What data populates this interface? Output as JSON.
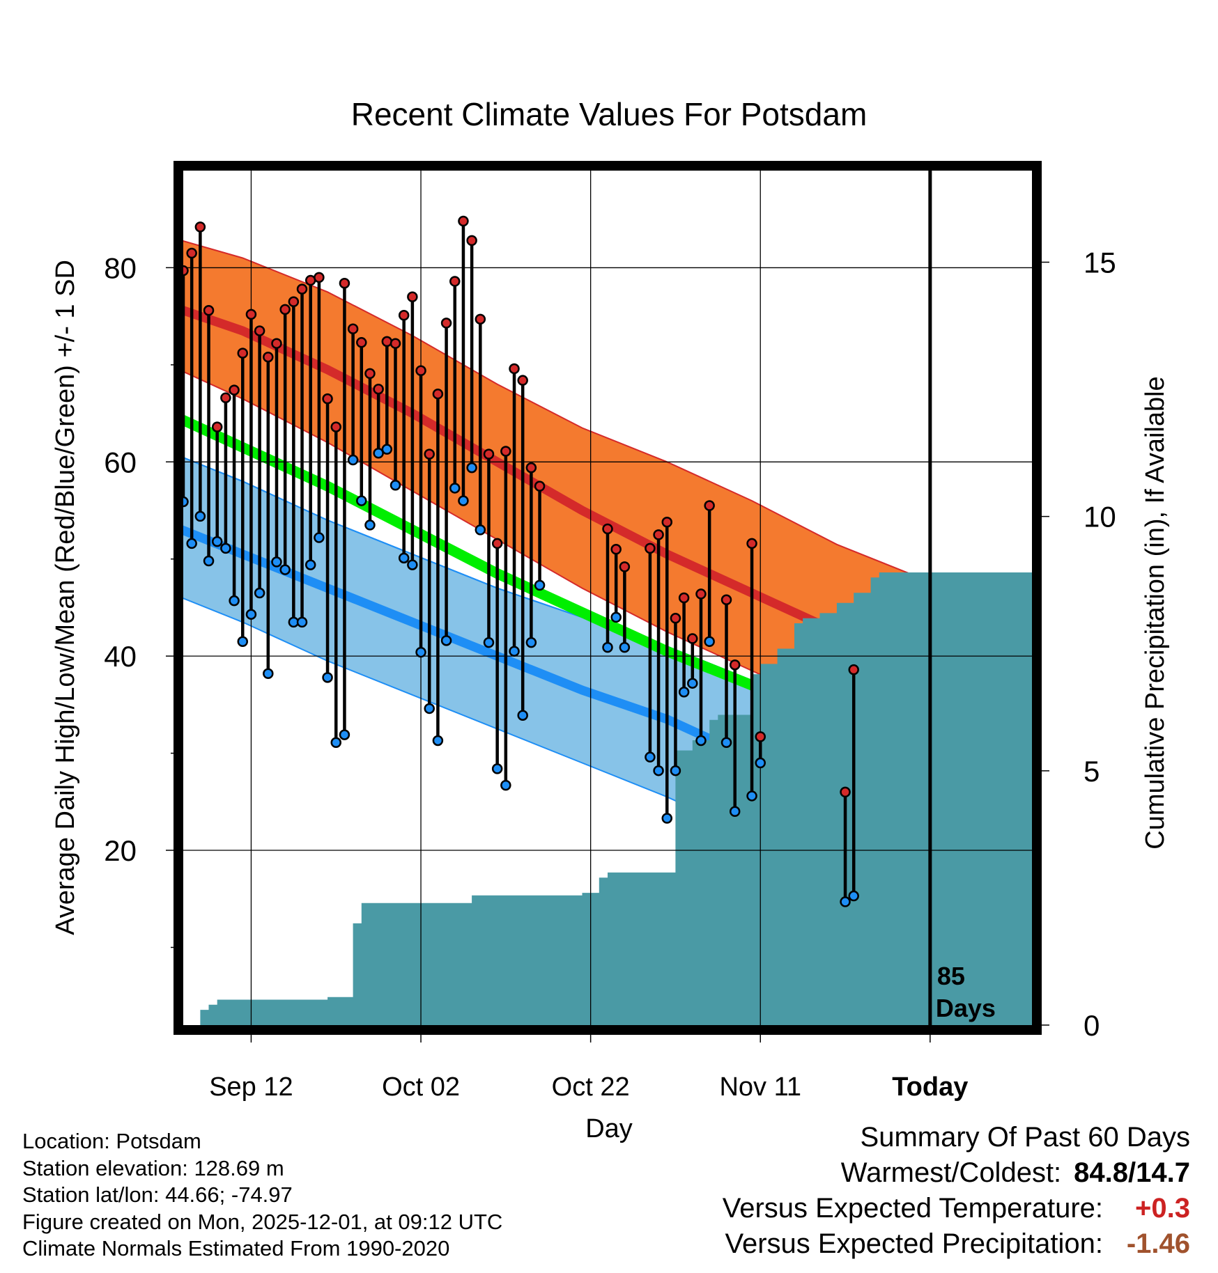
{
  "chart_data": {
    "type": "line",
    "title": "Recent Climate Values For Potsdam",
    "xlabel": "Day",
    "ylabel": "Average Daily High/Low/Mean (Red/Blue/Green) +/- 1 SD",
    "y2label": "Cumulative Precipitation (in), If Available",
    "x_range_days": [
      -87,
      13
    ],
    "y_range": [
      2,
      90
    ],
    "y2_range": [
      0,
      16.8
    ],
    "x_ticks": [
      {
        "day": -79,
        "label": "Sep 12"
      },
      {
        "day": -59,
        "label": "Oct 02"
      },
      {
        "day": -39,
        "label": "Oct 22"
      },
      {
        "day": -19,
        "label": "Nov 11"
      },
      {
        "day": 1,
        "label": "Today"
      }
    ],
    "y_ticks": [
      20,
      40,
      60,
      80
    ],
    "y2_ticks": [
      0,
      5,
      10,
      15
    ],
    "grid": true,
    "today_marker_day": 1,
    "today_label": [
      "85",
      "Days"
    ],
    "normals": {
      "days": [
        -90,
        -80,
        -70,
        -60,
        -50,
        -40,
        -30,
        -20,
        -10,
        0,
        10
      ],
      "high_mean": [
        76.5,
        73.5,
        69.5,
        65.0,
        60.0,
        55.0,
        50.5,
        46.5,
        42.5,
        38.5,
        35.0
      ],
      "high_upper": [
        83.5,
        81.0,
        77.5,
        73.0,
        68.0,
        63.5,
        60.0,
        56.0,
        51.5,
        48.0,
        44.5
      ],
      "high_lower": [
        70.5,
        66.5,
        62.0,
        57.0,
        52.0,
        47.0,
        42.5,
        38.5,
        34.5,
        29.5,
        25.0
      ],
      "mean": [
        65.5,
        61.5,
        57.5,
        53.0,
        48.5,
        44.5,
        40.5,
        37.0,
        33.5,
        30.0,
        26.5
      ],
      "low_mean": [
        54.0,
        50.5,
        47.0,
        43.5,
        40.0,
        36.5,
        33.5,
        29.5,
        25.5,
        22.0,
        19.0
      ],
      "low_upper": [
        61.5,
        58.0,
        54.0,
        50.5,
        47.0,
        44.0,
        41.0,
        37.5,
        34.5,
        31.5,
        29.0
      ],
      "low_lower": [
        47.0,
        43.5,
        39.5,
        36.0,
        32.5,
        29.0,
        25.5,
        21.5,
        17.5,
        14.0,
        10.5
      ]
    },
    "observations": [
      {
        "day": -87,
        "high": 79.7,
        "low": 55.9
      },
      {
        "day": -86,
        "high": 81.5,
        "low": 51.6
      },
      {
        "day": -85,
        "high": 84.2,
        "low": 54.4
      },
      {
        "day": -84,
        "high": 75.6,
        "low": 49.8
      },
      {
        "day": -83,
        "high": 63.6,
        "low": 51.8
      },
      {
        "day": -82,
        "high": 66.6,
        "low": 51.1
      },
      {
        "day": -81,
        "high": 67.4,
        "low": 45.7
      },
      {
        "day": -80,
        "high": 71.2,
        "low": 41.5
      },
      {
        "day": -79,
        "high": 75.2,
        "low": 44.3
      },
      {
        "day": -78,
        "high": 73.5,
        "low": 46.5
      },
      {
        "day": -77,
        "high": 70.8,
        "low": 38.2
      },
      {
        "day": -76,
        "high": 72.2,
        "low": 49.7
      },
      {
        "day": -75,
        "high": 75.7,
        "low": 48.9
      },
      {
        "day": -74,
        "high": 76.5,
        "low": 43.5
      },
      {
        "day": -73,
        "high": 77.8,
        "low": 43.5
      },
      {
        "day": -72,
        "high": 78.7,
        "low": 49.4
      },
      {
        "day": -71,
        "high": 79.0,
        "low": 52.2
      },
      {
        "day": -70,
        "high": 66.5,
        "low": 37.8
      },
      {
        "day": -69,
        "high": 63.6,
        "low": 31.1
      },
      {
        "day": -68,
        "high": 78.4,
        "low": 31.9
      },
      {
        "day": -67,
        "high": 73.7,
        "low": 60.2
      },
      {
        "day": -66,
        "high": 72.3,
        "low": 56.0
      },
      {
        "day": -65,
        "high": 69.1,
        "low": 53.5
      },
      {
        "day": -64,
        "high": 67.5,
        "low": 60.9
      },
      {
        "day": -63,
        "high": 72.4,
        "low": 61.3
      },
      {
        "day": -62,
        "high": 72.2,
        "low": 57.6
      },
      {
        "day": -61,
        "high": 75.1,
        "low": 50.1
      },
      {
        "day": -60,
        "high": 77.0,
        "low": 49.4
      },
      {
        "day": -59,
        "high": 69.4,
        "low": 40.4
      },
      {
        "day": -58,
        "high": 60.8,
        "low": 34.6
      },
      {
        "day": -57,
        "high": 67.0,
        "low": 31.3
      },
      {
        "day": -56,
        "high": 74.3,
        "low": 41.6
      },
      {
        "day": -55,
        "high": 78.6,
        "low": 57.3
      },
      {
        "day": -54,
        "high": 84.8,
        "low": 56.0
      },
      {
        "day": -53,
        "high": 82.8,
        "low": 59.4
      },
      {
        "day": -52,
        "high": 74.7,
        "low": 53.0
      },
      {
        "day": -51,
        "high": 60.8,
        "low": 41.4
      },
      {
        "day": -50,
        "high": 51.6,
        "low": 28.4
      },
      {
        "day": -49,
        "high": 61.1,
        "low": 26.7
      },
      {
        "day": -48,
        "high": 69.6,
        "low": 40.5
      },
      {
        "day": -47,
        "high": 68.4,
        "low": 33.9
      },
      {
        "day": -46,
        "high": 59.4,
        "low": 41.4
      },
      {
        "day": -45,
        "high": 57.5,
        "low": 47.3
      },
      {
        "day": -37,
        "high": 53.1,
        "low": 40.9
      },
      {
        "day": -36,
        "high": 51.0,
        "low": 44.0
      },
      {
        "day": -35,
        "high": 49.2,
        "low": 40.9
      },
      {
        "day": -32,
        "high": 51.1,
        "low": 29.6
      },
      {
        "day": -31,
        "high": 52.5,
        "low": 28.2
      },
      {
        "day": -30,
        "high": 53.8,
        "low": 23.3
      },
      {
        "day": -29,
        "high": 43.9,
        "low": 28.2
      },
      {
        "day": -28,
        "high": 46.0,
        "low": 36.3
      },
      {
        "day": -27,
        "high": 41.8,
        "low": 37.2
      },
      {
        "day": -26,
        "high": 46.4,
        "low": 31.3
      },
      {
        "day": -25,
        "high": 55.5,
        "low": 41.5
      },
      {
        "day": -23,
        "high": 45.8,
        "low": 31.1
      },
      {
        "day": -22,
        "high": 39.1,
        "low": 24.0
      },
      {
        "day": -20,
        "high": 51.6,
        "low": 25.6
      },
      {
        "day": -19,
        "high": 31.7,
        "low": 29.0
      },
      {
        "day": -9,
        "high": 26.0,
        "low": 14.7
      },
      {
        "day": -8,
        "high": 38.6,
        "low": 15.3
      }
    ],
    "cumulative_precip": {
      "days": [
        -85,
        -84,
        -83,
        -82,
        -80,
        -77,
        -75,
        -72,
        -70,
        -68,
        -67,
        -66,
        -65,
        -64,
        -60,
        -55,
        -53,
        -48,
        -40,
        -38,
        -37,
        -35,
        -33,
        -31,
        -29,
        -28,
        -27,
        -25,
        -24,
        -22,
        -20,
        -19,
        -17,
        -15,
        -14,
        -12,
        -10,
        -8,
        -6,
        -5,
        -3,
        -1,
        1,
        6,
        9
      ],
      "values": [
        0.3,
        0.4,
        0.5,
        0.5,
        0.5,
        0.5,
        0.5,
        0.5,
        0.55,
        0.55,
        2.0,
        2.4,
        2.4,
        2.4,
        2.4,
        2.4,
        2.55,
        2.55,
        2.6,
        2.9,
        3.0,
        3.0,
        3.0,
        3.0,
        5.4,
        5.4,
        5.6,
        6.0,
        6.1,
        6.1,
        6.9,
        7.1,
        7.4,
        7.9,
        8.0,
        8.1,
        8.3,
        8.5,
        8.8,
        8.9,
        8.9,
        8.9,
        8.9,
        8.9,
        8.9
      ]
    },
    "colors": {
      "high_band": "#f47a2f",
      "high_line": "#d42a2a",
      "low_band": "#87c3e8",
      "low_line": "#1e8ef5",
      "mean_line": "#00ee00",
      "overlap": "#8e0f14",
      "precip": "#4a9aa5",
      "high_dot": "#d42a2a",
      "low_dot": "#1e8ef5"
    }
  },
  "footer": {
    "location": "Location: Potsdam",
    "elevation": "Station elevation: 128.69 m",
    "latlon": "Station lat/lon: 44.66; -74.97",
    "created": "Figure created on Mon, 2025-12-01, at 09:12 UTC",
    "normals": "Climate Normals Estimated From 1990-2020"
  },
  "summary": {
    "title": "Summary Of Past 60 Days",
    "warm_cold_label": "Warmest/Coldest:",
    "warm_cold_value": "84.8/14.7",
    "temp_label": "Versus Expected Temperature:",
    "temp_value": "+0.3",
    "precip_label": "Versus Expected Precipitation:",
    "precip_value": "-1.46"
  }
}
